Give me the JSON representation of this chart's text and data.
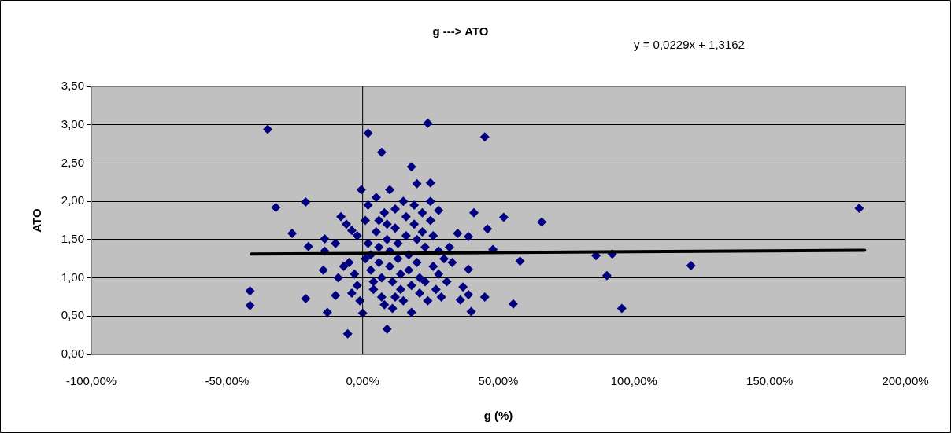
{
  "chart_data": {
    "type": "scatter",
    "title": "g ---> ATO",
    "xlabel": "g (%)",
    "ylabel": "ATO",
    "annotations": [
      "y = 0,0229x + 1,3162"
    ],
    "xlim": [
      -1,
      2
    ],
    "xticks": [
      {
        "value": -1,
        "label": "-100,00%"
      },
      {
        "value": -0.5,
        "label": "-50,00%"
      },
      {
        "value": 0,
        "label": "0,00%"
      },
      {
        "value": 0.5,
        "label": "50,00%"
      },
      {
        "value": 1,
        "label": "100,00%"
      },
      {
        "value": 1.5,
        "label": "150,00%"
      },
      {
        "value": 2,
        "label": "200,00%"
      }
    ],
    "ylim": [
      0,
      3.5
    ],
    "yticks": [
      {
        "value": 0,
        "label": "0,00"
      },
      {
        "value": 0.5,
        "label": "0,50"
      },
      {
        "value": 1,
        "label": "1,00"
      },
      {
        "value": 1.5,
        "label": "1,50"
      },
      {
        "value": 2,
        "label": "2,00"
      },
      {
        "value": 2.5,
        "label": "2,50"
      },
      {
        "value": 3,
        "label": "3,00"
      },
      {
        "value": 3.5,
        "label": "3,50"
      }
    ],
    "grid": "y",
    "legend": false,
    "ref_lines": [
      {
        "axis": "x",
        "value": 0,
        "color": "#000000"
      }
    ],
    "marker": "diamond",
    "series": [
      {
        "color": "#000080",
        "x": [
          -0.415,
          -0.415,
          -0.35,
          -0.32,
          -0.26,
          -0.21,
          -0.21,
          -0.2,
          -0.14,
          -0.14,
          -0.055,
          -0.13,
          -0.145,
          -0.1,
          -0.005,
          0.02,
          0.07,
          0.09,
          0.18,
          0.24,
          0.2,
          0.25,
          0.28,
          0.45,
          0.41,
          0.46,
          0.52,
          0.48,
          0.66,
          0.58,
          0.555,
          0.45,
          0.4,
          0.86,
          0.92,
          0.9,
          0.955,
          1.21,
          1.83,
          0.39,
          0.35,
          0.37,
          0.39,
          0.36,
          0.39,
          -0.08,
          -0.06,
          -0.04,
          -0.02,
          -0.05,
          -0.07,
          -0.03,
          -0.02,
          -0.04,
          -0.01,
          0,
          0.01,
          0.02,
          0.02,
          0.03,
          0.03,
          0.04,
          0.04,
          0.05,
          0.05,
          0.06,
          0.06,
          0.07,
          0.07,
          0.08,
          0.08,
          0.09,
          0.09,
          0.1,
          0.1,
          0.1,
          0.11,
          0.11,
          0.12,
          0.12,
          0.13,
          0.13,
          0.14,
          0.14,
          0.15,
          0.15,
          0.16,
          0.16,
          0.17,
          0.17,
          0.18,
          0.18,
          0.19,
          0.19,
          0.2,
          0.2,
          0.21,
          0.21,
          0.22,
          0.22,
          0.23,
          0.23,
          0.24,
          0.25,
          0.25,
          0.26,
          0.26,
          0.27,
          0.28,
          0.28,
          0.29,
          0.3,
          0.31,
          0.32,
          0.33,
          0.12,
          0.06,
          0.01,
          -0.09,
          -0.1
        ],
        "values": [
          0.83,
          0.64,
          2.94,
          1.92,
          1.58,
          0.73,
          1.99,
          1.41,
          1.35,
          1.51,
          0.27,
          0.55,
          1.1,
          0.77,
          2.15,
          2.89,
          2.64,
          0.33,
          2.45,
          3.02,
          2.23,
          2.24,
          1.88,
          2.84,
          1.85,
          1.64,
          1.79,
          1.37,
          1.73,
          1.22,
          0.66,
          0.75,
          0.56,
          1.29,
          1.31,
          1.03,
          0.6,
          1.16,
          1.91,
          1.54,
          1.58,
          0.88,
          0.78,
          0.71,
          1.11,
          1.8,
          1.7,
          1.62,
          1.55,
          1.2,
          1.15,
          1.05,
          0.9,
          0.8,
          0.7,
          0.54,
          1.75,
          1.95,
          1.45,
          1.3,
          1.1,
          0.95,
          0.85,
          2.05,
          1.6,
          1.4,
          1.2,
          1,
          0.75,
          0.65,
          1.85,
          1.7,
          1.5,
          2.15,
          1.35,
          1.15,
          0.95,
          0.6,
          1.9,
          1.65,
          1.45,
          1.25,
          1.05,
          0.85,
          0.7,
          2,
          1.8,
          1.55,
          1.3,
          1.1,
          0.9,
          0.55,
          1.95,
          1.7,
          1.5,
          1.2,
          1,
          0.8,
          1.85,
          1.6,
          1.4,
          0.95,
          0.7,
          2,
          1.75,
          1.55,
          1.15,
          0.85,
          1.35,
          1.05,
          0.75,
          1.25,
          0.95,
          1.4,
          1.2,
          0.75,
          1.75,
          1.25,
          1,
          1.45
        ]
      },
      {
        "type": "line",
        "color": "#000000",
        "marker": "none",
        "x": [
          -0.41,
          1.85
        ],
        "values": [
          1.31,
          1.36
        ]
      }
    ]
  }
}
